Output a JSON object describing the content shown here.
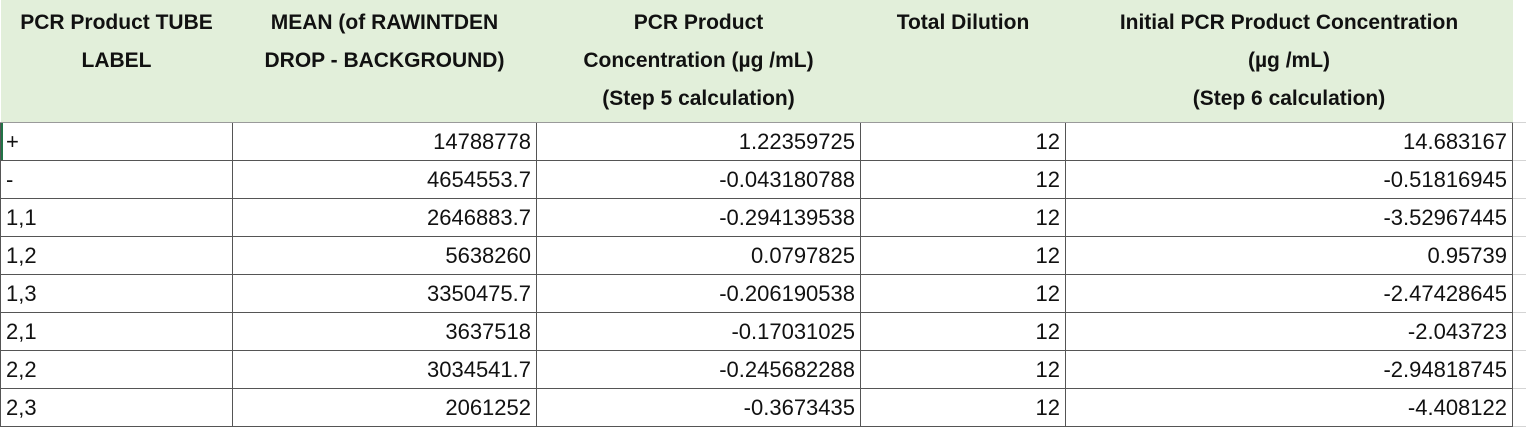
{
  "table": {
    "header": [
      [
        "PCR Product TUBE",
        "LABEL"
      ],
      [
        "MEAN (of RAWINTDEN",
        "DROP - BACKGROUND)"
      ],
      [
        "PCR Product",
        "Concentration (µg /mL)",
        "(Step 5 calculation)"
      ],
      [
        "Total Dilution"
      ],
      [
        "Initial PCR Product Concentration",
        "(µg /mL)",
        "(Step 6 calculation)"
      ]
    ],
    "rows": [
      [
        "+",
        "14788778",
        "1.22359725",
        "12",
        "14.683167"
      ],
      [
        "-",
        "4654553.7",
        "-0.043180788",
        "12",
        "-0.51816945"
      ],
      [
        "1,1",
        "2646883.7",
        "-0.294139538",
        "12",
        "-3.52967445"
      ],
      [
        "1,2",
        "5638260",
        "0.0797825",
        "12",
        "0.95739"
      ],
      [
        "1,3",
        "3350475.7",
        "-0.206190538",
        "12",
        "-2.47428645"
      ],
      [
        "2,1",
        "3637518",
        "-0.17031025",
        "12",
        "-2.043723"
      ],
      [
        "2,2",
        "3034541.7",
        "-0.245682288",
        "12",
        "-2.94818745"
      ],
      [
        "2,3",
        "2061252",
        "-0.3673435",
        "12",
        "-4.408122"
      ]
    ]
  }
}
